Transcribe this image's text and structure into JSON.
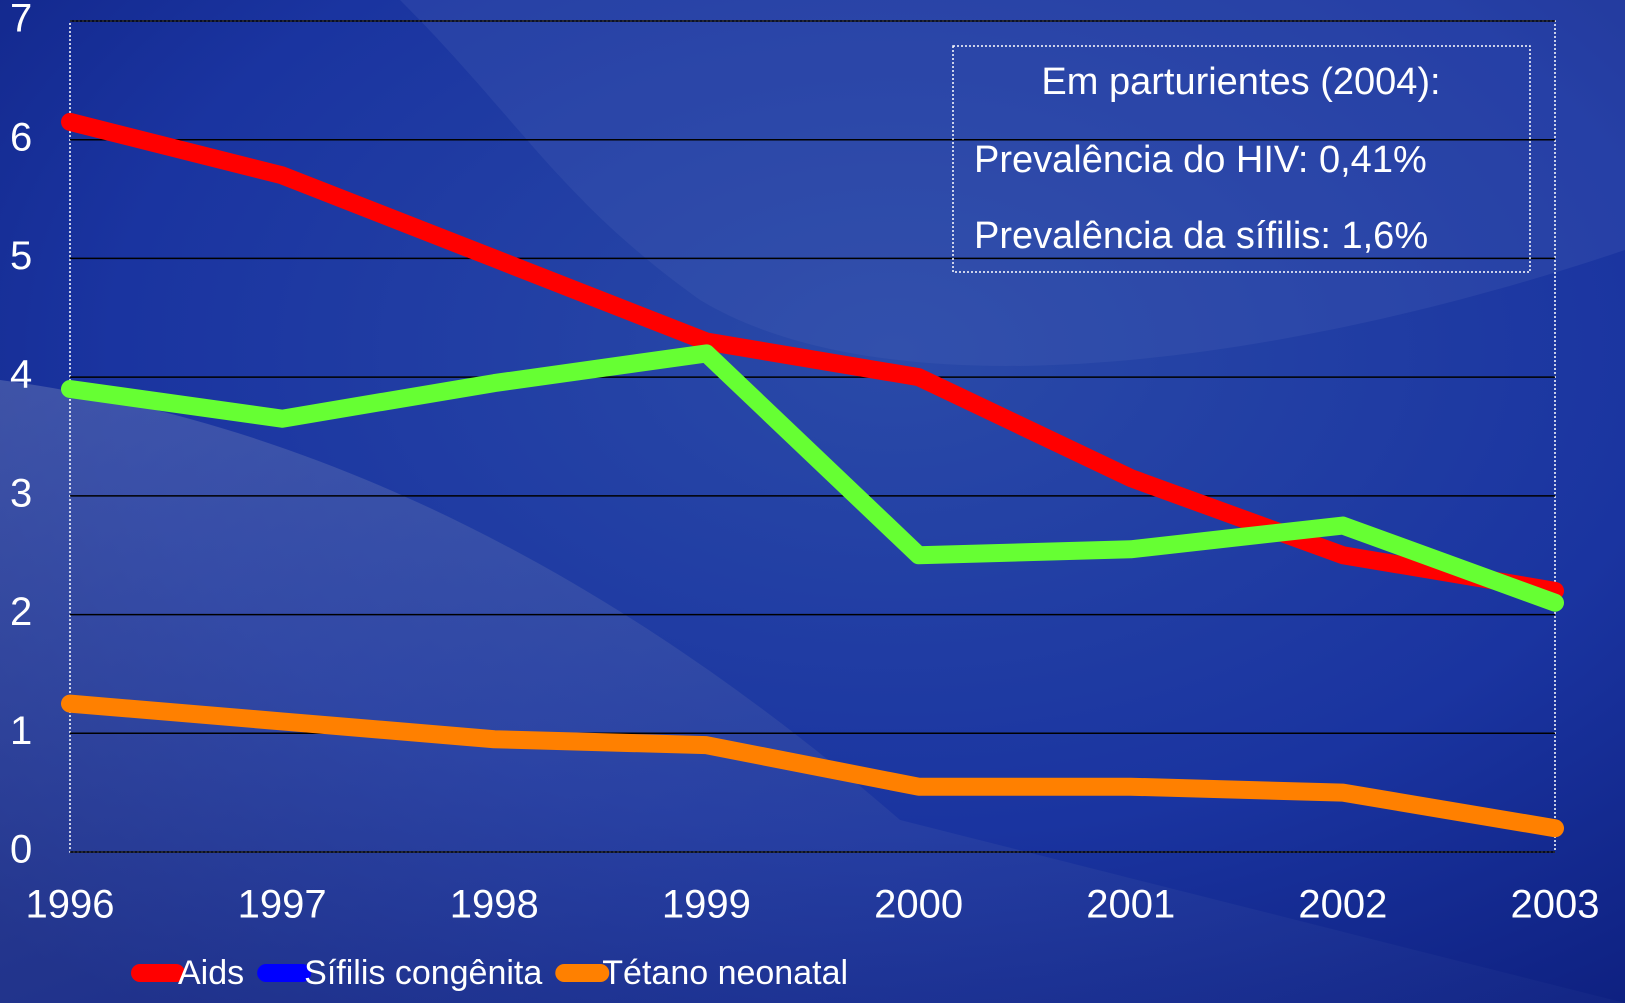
{
  "chart_data": {
    "type": "line",
    "categories": [
      "1996",
      "1997",
      "1998",
      "1999",
      "2000",
      "2001",
      "2002",
      "2003"
    ],
    "series": [
      {
        "name": "Aids",
        "color": "#ff0000",
        "values": [
          6.15,
          5.7,
          5.0,
          4.3,
          4.0,
          3.15,
          2.5,
          2.2
        ]
      },
      {
        "name": "Sífilis congênita",
        "color": "#66ff33",
        "legend_color": "#0000ff",
        "values": [
          3.9,
          3.65,
          3.95,
          4.2,
          2.5,
          2.55,
          2.75,
          2.1
        ]
      },
      {
        "name": "Tétano neonatal",
        "color": "#ff8000",
        "values": [
          1.25,
          1.1,
          0.95,
          0.9,
          0.55,
          0.55,
          0.5,
          0.2
        ]
      }
    ],
    "ylim": [
      0,
      7
    ],
    "yticks": [
      0,
      1,
      2,
      3,
      4,
      5,
      6,
      7
    ],
    "grid": true,
    "annotations": [
      "Em parturientes (2004):",
      "Prevalência do HIV: 0,41%",
      "Prevalência da sífilis: 1,6%"
    ]
  }
}
